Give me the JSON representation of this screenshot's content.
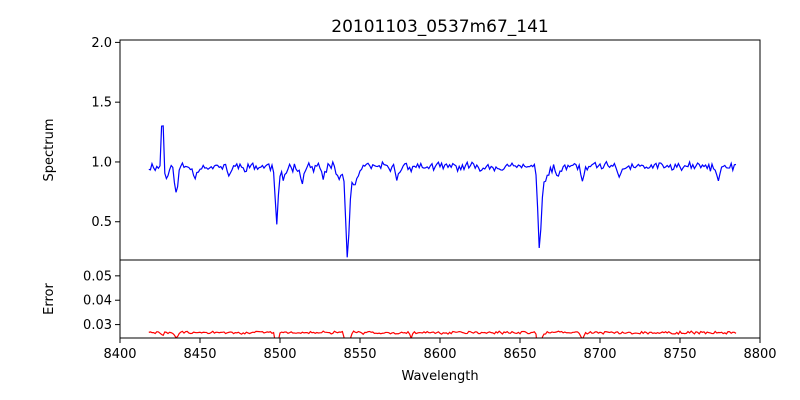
{
  "chart_data": [
    {
      "type": "line",
      "title": "20101103_0537m67_141",
      "xlabel": "",
      "ylabel": "Spectrum",
      "xlim": [
        8400,
        8800
      ],
      "ylim": [
        0.18,
        2.02
      ],
      "xticks": [],
      "yticks": [
        0.5,
        1.0,
        1.5,
        2.0
      ],
      "ytick_labels": [
        "0.5",
        "1.0",
        "1.5",
        "2.0"
      ],
      "grid": false,
      "color": "#0000ff",
      "baseline": 0.96,
      "noise_amplitude": 0.045,
      "x_start": 8418,
      "x_end": 8785,
      "x_step": 1,
      "features": [
        {
          "center": 8426.5,
          "depth": -0.96,
          "width": 0.35
        },
        {
          "center": 8429,
          "depth": 0.09,
          "width": 0.9
        },
        {
          "center": 8435,
          "depth": 0.22,
          "width": 1.0
        },
        {
          "center": 8447,
          "depth": 0.1,
          "width": 1.0
        },
        {
          "center": 8468,
          "depth": 0.08,
          "width": 0.9
        },
        {
          "center": 8498.0,
          "depth": 0.48,
          "width": 0.9
        },
        {
          "center": 8502,
          "depth": 0.1,
          "width": 1.4
        },
        {
          "center": 8514,
          "depth": 0.12,
          "width": 1.0
        },
        {
          "center": 8527,
          "depth": 0.1,
          "width": 1.0
        },
        {
          "center": 8537,
          "depth": 0.1,
          "width": 1.5
        },
        {
          "center": 8542.1,
          "depth": 0.7,
          "width": 1.1
        },
        {
          "center": 8546,
          "depth": 0.15,
          "width": 2.5
        },
        {
          "center": 8573,
          "depth": 0.1,
          "width": 1.0
        },
        {
          "center": 8662.2,
          "depth": 0.62,
          "width": 1.1
        },
        {
          "center": 8666,
          "depth": 0.1,
          "width": 2.5
        },
        {
          "center": 8674,
          "depth": 0.1,
          "width": 1.0
        },
        {
          "center": 8689,
          "depth": 0.12,
          "width": 1.0
        },
        {
          "center": 8712,
          "depth": 0.1,
          "width": 1.0
        },
        {
          "center": 8774,
          "depth": 0.12,
          "width": 1.0
        }
      ]
    },
    {
      "type": "line",
      "title": "",
      "xlabel": "Wavelength",
      "ylabel": "Error",
      "xlim": [
        8400,
        8800
      ],
      "ylim": [
        0.0245,
        0.0565
      ],
      "xticks": [
        8400,
        8450,
        8500,
        8550,
        8600,
        8650,
        8700,
        8750,
        8800
      ],
      "xtick_labels": [
        "8400",
        "8450",
        "8500",
        "8550",
        "8600",
        "8650",
        "8700",
        "8750",
        "8800"
      ],
      "yticks": [
        0.03,
        0.04,
        0.05
      ],
      "ytick_labels": [
        "0.03",
        "0.04",
        "0.05"
      ],
      "grid": false,
      "color": "#ff0000",
      "baseline": 0.0267,
      "noise_amplitude": 0.0007,
      "x_start": 8418,
      "x_end": 8785,
      "x_step": 1,
      "features": [
        {
          "center": 8426.5,
          "depth": 0.0015,
          "width": 0.4
        },
        {
          "center": 8435,
          "depth": 0.002,
          "width": 1.0
        },
        {
          "center": 8498.0,
          "depth": 0.0095,
          "width": 0.7
        },
        {
          "center": 8542.1,
          "depth": 0.0285,
          "width": 0.85
        },
        {
          "center": 8582,
          "depth": 0.002,
          "width": 0.6
        },
        {
          "center": 8662.2,
          "depth": 0.0195,
          "width": 0.85
        },
        {
          "center": 8689,
          "depth": 0.0025,
          "width": 0.7
        }
      ]
    }
  ]
}
